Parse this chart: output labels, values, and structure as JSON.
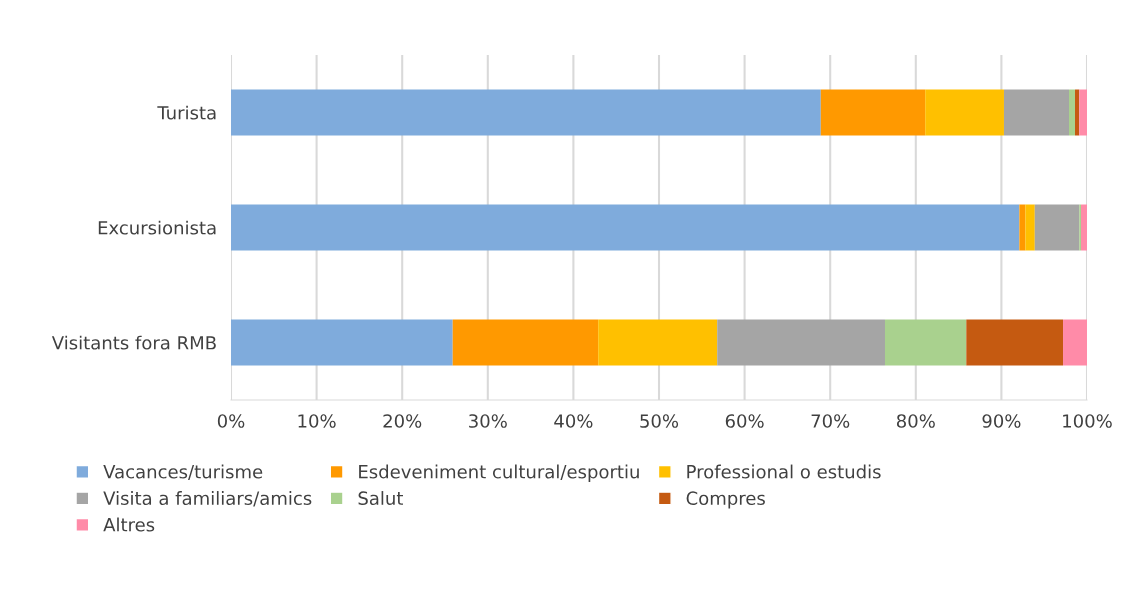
{
  "chart_data": {
    "type": "bar",
    "orientation": "horizontal",
    "stacked": true,
    "grid": "x",
    "legend": "bottom",
    "categories": [
      "Turista",
      "Excursionista",
      "Visitants fora RMB"
    ],
    "xlim": [
      0,
      100
    ],
    "xticks": [
      {
        "value": 0,
        "label": "0%"
      },
      {
        "value": 10,
        "label": "10%"
      },
      {
        "value": 20,
        "label": "20%"
      },
      {
        "value": 30,
        "label": "30%"
      },
      {
        "value": 40,
        "label": "40%"
      },
      {
        "value": 50,
        "label": "50%"
      },
      {
        "value": 60,
        "label": "60%"
      },
      {
        "value": 70,
        "label": "70%"
      },
      {
        "value": 80,
        "label": "80%"
      },
      {
        "value": 90,
        "label": "90%"
      },
      {
        "value": 100,
        "label": "100%"
      }
    ],
    "series": [
      {
        "name": "Vacances/turisme",
        "color": "#7fabdc",
        "values": [
          68.9,
          92.1,
          25.9
        ]
      },
      {
        "name": "Esdeveniment cultural/esportiu",
        "color": "#ff9900",
        "values": [
          12.2,
          0.7,
          17.0
        ]
      },
      {
        "name": "Professional o estudis",
        "color": "#ffc000",
        "values": [
          9.2,
          1.1,
          13.9
        ]
      },
      {
        "name": "Visita a familiars/amics",
        "color": "#a5a5a5",
        "values": [
          7.6,
          5.2,
          19.6
        ]
      },
      {
        "name": "Salut",
        "color": "#a9d18e",
        "values": [
          0.7,
          0.2,
          9.5
        ]
      },
      {
        "name": "Compres",
        "color": "#c55a11",
        "values": [
          0.5,
          0.0,
          11.3
        ]
      },
      {
        "name": "Altres",
        "color": "#ff8ba8",
        "values": [
          0.9,
          0.7,
          2.8
        ]
      }
    ]
  }
}
